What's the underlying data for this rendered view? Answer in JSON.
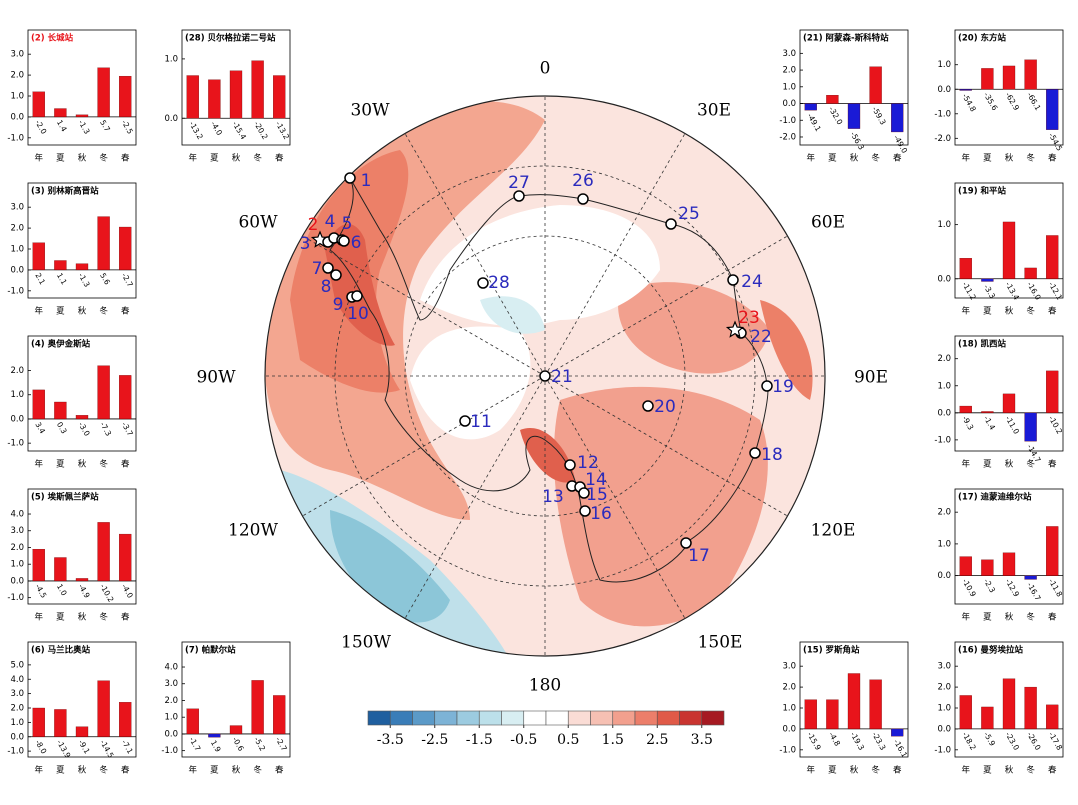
{
  "chart_data": [
    {
      "type": "bar",
      "title": "(2) 长城站",
      "title_color": "#e8141b",
      "categories": [
        "年",
        "夏",
        "秋",
        "冬",
        "春"
      ],
      "values": [
        1.2,
        0.4,
        0.1,
        2.35,
        1.95
      ],
      "value_labels": [
        "-2.0",
        "1.4",
        "-1.3",
        "5.7",
        "-2.5"
      ],
      "color": "#e8141b",
      "negative_color": "#1a1ad6",
      "ylim": [
        -1.2,
        3.2
      ],
      "yticks": [
        {
          "value": -1,
          "label": "-1.0"
        },
        {
          "value": 0,
          "label": "0.0"
        },
        {
          "value": 1,
          "label": "1.0"
        },
        {
          "value": 2,
          "label": "2.0"
        },
        {
          "value": 3,
          "label": "3.0"
        }
      ]
    },
    {
      "type": "bar",
      "title": "(3) 别林斯高晋站",
      "categories": [
        "年",
        "夏",
        "秋",
        "冬",
        "春"
      ],
      "values": [
        1.3,
        0.45,
        0.3,
        2.55,
        2.05
      ],
      "value_labels": [
        "2.1",
        "1.1",
        "-1.3",
        "5.6",
        "-2.7"
      ],
      "color": "#e8141b",
      "negative_color": "#1a1ad6",
      "ylim": [
        -1.2,
        3.2
      ],
      "yticks": [
        {
          "value": -1,
          "label": "-1.0"
        },
        {
          "value": 0,
          "label": "0.0"
        },
        {
          "value": 1,
          "label": "1.0"
        },
        {
          "value": 2,
          "label": "2.0"
        },
        {
          "value": 3,
          "label": "3.0"
        }
      ]
    },
    {
      "type": "bar",
      "title": "(4) 奥伊金斯站",
      "categories": [
        "年",
        "夏",
        "秋",
        "冬",
        "春"
      ],
      "values": [
        1.2,
        0.7,
        0.15,
        2.2,
        1.8
      ],
      "value_labels": [
        "3.4",
        "0.3",
        "-3.0",
        "-7.3",
        "-3.7"
      ],
      "color": "#e8141b",
      "negative_color": "#1a1ad6",
      "ylim": [
        -1.2,
        2.6
      ],
      "yticks": [
        {
          "value": -1,
          "label": "-1.0"
        },
        {
          "value": 0,
          "label": "0.0"
        },
        {
          "value": 1,
          "label": "1.0"
        },
        {
          "value": 2,
          "label": "2.0"
        }
      ]
    },
    {
      "type": "bar",
      "title": "(5) 埃斯佩兰萨站",
      "categories": [
        "年",
        "夏",
        "秋",
        "冬",
        "春"
      ],
      "values": [
        1.9,
        1.4,
        0.15,
        3.5,
        2.8
      ],
      "value_labels": [
        "-4.5",
        "1.0",
        "-4.9",
        "-10.2",
        "-4.0"
      ],
      "color": "#e8141b",
      "negative_color": "#1a1ad6",
      "ylim": [
        -1.2,
        4.3
      ],
      "yticks": [
        {
          "value": -1,
          "label": "-1.0"
        },
        {
          "value": 0,
          "label": "0.0"
        },
        {
          "value": 1,
          "label": "1.0"
        },
        {
          "value": 2,
          "label": "2.0"
        },
        {
          "value": 3,
          "label": "3.0"
        },
        {
          "value": 4,
          "label": "4.0"
        }
      ]
    },
    {
      "type": "bar",
      "title": "(6) 马兰比奥站",
      "categories": [
        "年",
        "夏",
        "秋",
        "冬",
        "春"
      ],
      "values": [
        2.0,
        1.9,
        0.7,
        3.9,
        2.4
      ],
      "value_labels": [
        "-8.0",
        "-13.9",
        "-9.1",
        "-14.5",
        "-7.1"
      ],
      "color": "#e8141b",
      "negative_color": "#1a1ad6",
      "ylim": [
        -1.2,
        5.2
      ],
      "yticks": [
        {
          "value": -1,
          "label": "-1.0"
        },
        {
          "value": 0,
          "label": "0.0"
        },
        {
          "value": 1,
          "label": "1.0"
        },
        {
          "value": 2,
          "label": "2.0"
        },
        {
          "value": 3,
          "label": "3.0"
        },
        {
          "value": 4,
          "label": "4.0"
        },
        {
          "value": 5,
          "label": "5.0"
        }
      ]
    },
    {
      "type": "bar",
      "title": "(28) 贝尔格拉诺二号站",
      "categories": [
        "年",
        "夏",
        "秋",
        "冬",
        "春"
      ],
      "values": [
        0.72,
        0.65,
        0.8,
        0.97,
        0.72
      ],
      "value_labels": [
        "-13.2",
        "-4.0",
        "-15.4",
        "-20.2",
        "-13.2"
      ],
      "color": "#e8141b",
      "negative_color": "#1a1ad6",
      "ylim": [
        -0.4,
        1.15
      ],
      "yticks": [
        {
          "value": 0,
          "label": "0.0"
        },
        {
          "value": 1,
          "label": "1.0"
        }
      ]
    },
    {
      "type": "bar",
      "title": "(7) 帕默尔站",
      "categories": [
        "年",
        "夏",
        "秋",
        "冬",
        "春"
      ],
      "values": [
        1.5,
        -0.2,
        0.5,
        3.2,
        2.3
      ],
      "value_labels": [
        "-1.7",
        "1.9",
        "-0.6",
        "-5.2",
        "-2.7"
      ],
      "color": "#e8141b",
      "negative_color": "#1a1ad6",
      "ylim": [
        -1.2,
        4.3
      ],
      "yticks": [
        {
          "value": -1,
          "label": "-1.0"
        },
        {
          "value": 0,
          "label": "0.0"
        },
        {
          "value": 1,
          "label": "1.0"
        },
        {
          "value": 2,
          "label": "2.0"
        },
        {
          "value": 3,
          "label": "3.0"
        },
        {
          "value": 4,
          "label": "4.0"
        }
      ]
    },
    {
      "type": "bar",
      "title": "(21) 阿蒙森-斯科特站",
      "categories": [
        "年",
        "夏",
        "秋",
        "冬",
        "春"
      ],
      "values": [
        -0.4,
        0.5,
        -1.5,
        2.2,
        -1.7
      ],
      "value_labels": [
        "-49.1",
        "-32.0",
        "-56.3",
        "-59.3",
        "-49.0"
      ],
      "color": "#e8141b",
      "negative_color": "#1a1ad6",
      "ylim": [
        -2.3,
        3.2
      ],
      "yticks": [
        {
          "value": -2,
          "label": "-2.0"
        },
        {
          "value": -1,
          "label": "-1.0"
        },
        {
          "value": 0,
          "label": "0.0"
        },
        {
          "value": 1,
          "label": "1.0"
        },
        {
          "value": 2,
          "label": "2.0"
        },
        {
          "value": 3,
          "label": "3.0"
        }
      ]
    },
    {
      "type": "bar",
      "title": "(20) 东方站",
      "categories": [
        "年",
        "夏",
        "秋",
        "冬",
        "春"
      ],
      "values": [
        -0.05,
        0.85,
        0.95,
        1.2,
        -1.65
      ],
      "value_labels": [
        "-54.8",
        "-35.6",
        "-62.9",
        "-66.1",
        "-54.5"
      ],
      "color": "#e8141b",
      "negative_color": "#1a1ad6",
      "ylim": [
        -2.15,
        1.6
      ],
      "yticks": [
        {
          "value": -2,
          "label": "-2.0"
        },
        {
          "value": -1,
          "label": "-1.0"
        },
        {
          "value": 0,
          "label": "0.0"
        },
        {
          "value": 1,
          "label": "1.0"
        }
      ]
    },
    {
      "type": "bar",
      "title": "(19) 和平站",
      "categories": [
        "年",
        "夏",
        "秋",
        "冬",
        "春"
      ],
      "values": [
        0.38,
        -0.05,
        1.05,
        0.2,
        0.8
      ],
      "value_labels": [
        "-11.2",
        "-3.3",
        "-13.4",
        "-16.0",
        "-12.1"
      ],
      "color": "#e8141b",
      "negative_color": "#1a1ad6",
      "ylim": [
        -0.3,
        1.4
      ],
      "yticks": [
        {
          "value": 0,
          "label": "0.0"
        },
        {
          "value": 1,
          "label": "1.0"
        }
      ]
    },
    {
      "type": "bar",
      "title": "(18) 凯西站",
      "categories": [
        "年",
        "夏",
        "秋",
        "冬",
        "春"
      ],
      "values": [
        0.25,
        0.05,
        0.7,
        -1.05,
        1.55
      ],
      "value_labels": [
        "-9.3",
        "-1.4",
        "-11.0",
        "-14.7",
        "-10.2"
      ],
      "color": "#e8141b",
      "negative_color": "#1a1ad6",
      "ylim": [
        -1.3,
        2.1
      ],
      "yticks": [
        {
          "value": -1,
          "label": "-1.0"
        },
        {
          "value": 0,
          "label": "0.0"
        },
        {
          "value": 1,
          "label": "1.0"
        },
        {
          "value": 2,
          "label": "2.0"
        }
      ]
    },
    {
      "type": "bar",
      "title": "(17) 迪蒙迪维尔站",
      "categories": [
        "年",
        "夏",
        "秋",
        "冬",
        "春"
      ],
      "values": [
        0.6,
        0.5,
        0.72,
        -0.12,
        1.55
      ],
      "value_labels": [
        "-10.9",
        "-2.3",
        "-12.9",
        "-16.7",
        "-11.8"
      ],
      "color": "#e8141b",
      "negative_color": "#1a1ad6",
      "ylim": [
        -0.8,
        2.1
      ],
      "yticks": [
        {
          "value": 0,
          "label": "0.0"
        },
        {
          "value": 1,
          "label": "1.0"
        },
        {
          "value": 2,
          "label": "2.0"
        }
      ]
    },
    {
      "type": "bar",
      "title": "(15) 罗斯角站",
      "categories": [
        "年",
        "夏",
        "秋",
        "冬",
        "春"
      ],
      "values": [
        1.4,
        1.4,
        2.65,
        2.35,
        -0.35
      ],
      "value_labels": [
        "-15.9",
        "-4.8",
        "-19.3",
        "-23.3",
        "-16.1"
      ],
      "color": "#e8141b",
      "negative_color": "#1a1ad6",
      "ylim": [
        -1.2,
        3.2
      ],
      "yticks": [
        {
          "value": -1,
          "label": "-1.0"
        },
        {
          "value": 0,
          "label": "0.0"
        },
        {
          "value": 1,
          "label": "1.0"
        },
        {
          "value": 2,
          "label": "2.0"
        },
        {
          "value": 3,
          "label": "3.0"
        }
      ]
    },
    {
      "type": "bar",
      "title": "(16) 曼努埃拉站",
      "categories": [
        "年",
        "夏",
        "秋",
        "冬",
        "春"
      ],
      "values": [
        1.6,
        1.05,
        2.4,
        2.0,
        1.15
      ],
      "value_labels": [
        "-18.2",
        "-5.9",
        "-23.0",
        "-26.0",
        "-17.8"
      ],
      "color": "#e8141b",
      "negative_color": "#1a1ad6",
      "ylim": [
        -1.2,
        3.2
      ],
      "yticks": [
        {
          "value": -1,
          "label": "-1.0"
        },
        {
          "value": 0,
          "label": "0.0"
        },
        {
          "value": 1,
          "label": "1.0"
        },
        {
          "value": 2,
          "label": "2.0"
        },
        {
          "value": 3,
          "label": "3.0"
        }
      ]
    }
  ],
  "map": {
    "meridian_labels": [
      "0",
      "30E",
      "60E",
      "90E",
      "120E",
      "150E",
      "180",
      "150W",
      "120W",
      "90W",
      "60W",
      "30W"
    ],
    "stations": [
      {
        "label": "1",
        "color": "#2b2bbd",
        "marker": "circle"
      },
      {
        "label": "2",
        "color": "#e8141b",
        "marker": "star"
      },
      {
        "label": "3",
        "color": "#2b2bbd",
        "marker": "circle"
      },
      {
        "label": "4",
        "color": "#2b2bbd",
        "marker": "circle"
      },
      {
        "label": "5",
        "color": "#2b2bbd",
        "marker": "circle"
      },
      {
        "label": "6",
        "color": "#2b2bbd",
        "marker": "circle"
      },
      {
        "label": "7",
        "color": "#2b2bbd",
        "marker": "circle"
      },
      {
        "label": "8",
        "color": "#2b2bbd",
        "marker": "circle"
      },
      {
        "label": "9",
        "color": "#2b2bbd",
        "marker": "circle"
      },
      {
        "label": "10",
        "color": "#2b2bbd",
        "marker": "circle"
      },
      {
        "label": "11",
        "color": "#2b2bbd",
        "marker": "circle"
      },
      {
        "label": "12",
        "color": "#2b2bbd",
        "marker": "circle"
      },
      {
        "label": "13",
        "color": "#2b2bbd",
        "marker": "circle"
      },
      {
        "label": "14",
        "color": "#2b2bbd",
        "marker": "circle"
      },
      {
        "label": "15",
        "color": "#2b2bbd",
        "marker": "circle"
      },
      {
        "label": "16",
        "color": "#2b2bbd",
        "marker": "circle"
      },
      {
        "label": "17",
        "color": "#2b2bbd",
        "marker": "circle"
      },
      {
        "label": "18",
        "color": "#2b2bbd",
        "marker": "circle"
      },
      {
        "label": "19",
        "color": "#2b2bbd",
        "marker": "circle"
      },
      {
        "label": "20",
        "color": "#2b2bbd",
        "marker": "circle"
      },
      {
        "label": "21",
        "color": "#2b2bbd",
        "marker": "circle"
      },
      {
        "label": "22",
        "color": "#2b2bbd",
        "marker": "circle"
      },
      {
        "label": "23",
        "color": "#e8141b",
        "marker": "star"
      },
      {
        "label": "24",
        "color": "#2b2bbd",
        "marker": "circle"
      },
      {
        "label": "25",
        "color": "#2b2bbd",
        "marker": "circle"
      },
      {
        "label": "26",
        "color": "#2b2bbd",
        "marker": "circle"
      },
      {
        "label": "27",
        "color": "#2b2bbd",
        "marker": "circle"
      },
      {
        "label": "28",
        "color": "#2b2bbd",
        "marker": "circle"
      }
    ],
    "colorbar": {
      "colors": [
        "#1f5f9f",
        "#3a7db8",
        "#5b9ac8",
        "#7db3d6",
        "#9ccbe0",
        "#bce0ea",
        "#d8eef2",
        "#ffffff",
        "#ffffff",
        "#fadcd5",
        "#f6c0b3",
        "#f2a08e",
        "#ec7e6a",
        "#e05a48",
        "#c93430",
        "#a61a22"
      ],
      "ticks": [
        -3.5,
        -2.5,
        -1.5,
        -0.5,
        0.5,
        1.5,
        2.5,
        3.5
      ]
    }
  }
}
